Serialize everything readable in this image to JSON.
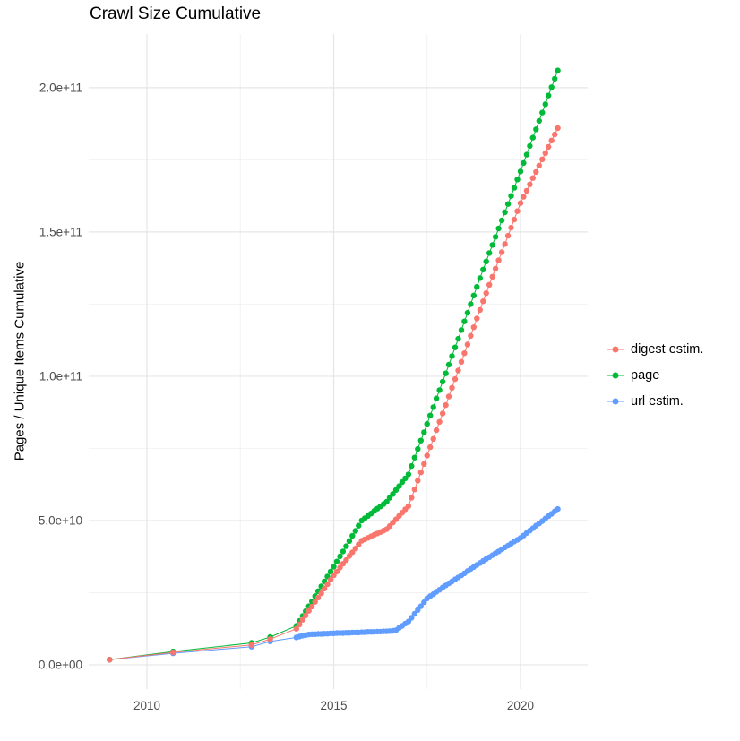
{
  "chart_data": {
    "type": "scatter",
    "title": "Crawl Size Cumulative",
    "xlabel": "",
    "ylabel": "Pages / Unique Items Cumulative",
    "values_unit": "billions (1e9)",
    "xlim": [
      2008.44,
      2021.8
    ],
    "ylim": [
      -8.4,
      218.6
    ],
    "grid": true,
    "grid_major_color": "#e6e6e6",
    "grid_minor_color": "#f2f2f2",
    "background_color": "#ffffff",
    "legend_position": "right",
    "x_ticks": [
      {
        "value": 2010,
        "label": "2010"
      },
      {
        "value": 2015,
        "label": "2015"
      },
      {
        "value": 2020,
        "label": "2020"
      }
    ],
    "y_ticks": [
      {
        "value": 0,
        "label": "0.0e+00"
      },
      {
        "value": 50,
        "label": "5.0e+10"
      },
      {
        "value": 100,
        "label": "1.0e+11"
      },
      {
        "value": 150,
        "label": "1.5e+11"
      },
      {
        "value": 200,
        "label": "2.0e+11"
      }
    ],
    "x_minor": [
      2012.5,
      2017.5
    ],
    "y_minor": [
      25,
      75,
      125,
      175
    ],
    "x": [
      2009.0,
      2010.7,
      2012.8,
      2013.3,
      2014.0,
      2014.083,
      2014.167,
      2014.25,
      2014.333,
      2014.417,
      2014.5,
      2014.583,
      2014.667,
      2014.75,
      2014.833,
      2014.917,
      2015.0,
      2015.083,
      2015.167,
      2015.25,
      2015.333,
      2015.417,
      2015.5,
      2015.583,
      2015.667,
      2015.75,
      2015.833,
      2015.917,
      2016.0,
      2016.083,
      2016.167,
      2016.25,
      2016.333,
      2016.417,
      2016.5,
      2016.583,
      2016.667,
      2016.75,
      2016.833,
      2016.917,
      2017.0,
      2017.083,
      2017.167,
      2017.25,
      2017.333,
      2017.417,
      2017.5,
      2017.583,
      2017.667,
      2017.75,
      2017.833,
      2017.917,
      2018.0,
      2018.083,
      2018.167,
      2018.25,
      2018.333,
      2018.417,
      2018.5,
      2018.583,
      2018.667,
      2018.75,
      2018.833,
      2018.917,
      2019.0,
      2019.083,
      2019.167,
      2019.25,
      2019.333,
      2019.417,
      2019.5,
      2019.583,
      2019.667,
      2019.75,
      2019.833,
      2019.917,
      2020.0,
      2020.083,
      2020.167,
      2020.25,
      2020.333,
      2020.417,
      2020.5,
      2020.583,
      2020.667,
      2020.75,
      2020.833,
      2020.917,
      2021.0
    ],
    "series": [
      {
        "name": "digest estim.",
        "color": "#F8766D",
        "values": [
          1.8,
          4.3,
          6.9,
          8.9,
          12.5,
          14.0,
          15.6,
          17.1,
          18.7,
          20.2,
          21.8,
          23.3,
          24.8,
          26.4,
          27.9,
          29.5,
          31.0,
          32.3,
          33.7,
          35.0,
          36.3,
          37.7,
          39.0,
          40.3,
          41.7,
          43.0,
          43.5,
          44.0,
          44.5,
          45.0,
          45.5,
          46.0,
          46.5,
          47.0,
          48.1,
          49.3,
          50.4,
          51.6,
          52.7,
          53.9,
          55.0,
          57.9,
          60.8,
          63.8,
          66.7,
          69.6,
          72.5,
          75.4,
          78.3,
          81.3,
          84.2,
          87.1,
          90.0,
          93.0,
          96.0,
          99.0,
          102.0,
          105.0,
          108.0,
          111.0,
          114.0,
          117.0,
          120.0,
          123.0,
          126.0,
          128.8,
          131.7,
          134.5,
          137.3,
          140.2,
          143.0,
          145.8,
          148.7,
          151.5,
          154.3,
          157.2,
          160.0,
          162.2,
          164.3,
          166.5,
          168.7,
          170.8,
          173.0,
          175.2,
          177.3,
          179.5,
          181.7,
          183.8,
          186.0
        ]
      },
      {
        "name": "page",
        "color": "#00BA38",
        "values": [
          1.8,
          4.6,
          7.6,
          9.6,
          13.5,
          15.2,
          16.9,
          18.6,
          20.3,
          22.0,
          23.8,
          25.5,
          27.2,
          28.9,
          30.6,
          32.3,
          34.0,
          35.8,
          37.6,
          39.3,
          41.1,
          42.9,
          44.7,
          46.4,
          48.2,
          50.0,
          50.8,
          51.6,
          52.4,
          53.3,
          54.1,
          54.9,
          55.7,
          56.5,
          57.9,
          59.2,
          60.6,
          61.9,
          63.3,
          64.6,
          66.0,
          68.9,
          71.8,
          74.8,
          77.7,
          80.6,
          83.5,
          86.4,
          89.3,
          92.3,
          95.2,
          98.1,
          101.0,
          104.0,
          107.0,
          110.0,
          113.0,
          116.0,
          119.0,
          122.0,
          125.0,
          128.0,
          131.0,
          134.0,
          137.0,
          139.8,
          142.7,
          145.5,
          148.3,
          151.2,
          154.0,
          156.8,
          159.7,
          162.5,
          165.3,
          168.2,
          171.0,
          173.9,
          176.8,
          179.8,
          182.7,
          185.6,
          188.5,
          191.4,
          194.3,
          197.3,
          200.2,
          203.1,
          206.0
        ]
      },
      {
        "name": "url estim.",
        "color": "#619CFF",
        "values": [
          1.8,
          4.0,
          6.3,
          8.1,
          9.5,
          9.8,
          10.1,
          10.3,
          10.5,
          10.6,
          10.6,
          10.7,
          10.7,
          10.8,
          10.8,
          10.9,
          10.9,
          11.0,
          11.0,
          11.0,
          11.1,
          11.1,
          11.2,
          11.2,
          11.2,
          11.3,
          11.3,
          11.4,
          11.4,
          11.4,
          11.5,
          11.5,
          11.6,
          11.6,
          11.7,
          11.8,
          12.0,
          12.8,
          13.5,
          14.3,
          15.0,
          16.3,
          17.7,
          19.0,
          20.3,
          21.7,
          23.0,
          23.8,
          24.5,
          25.3,
          26.0,
          26.8,
          27.5,
          28.2,
          28.9,
          29.6,
          30.3,
          31.0,
          31.7,
          32.5,
          33.2,
          33.9,
          34.6,
          35.3,
          36.0,
          36.7,
          37.3,
          38.0,
          38.7,
          39.3,
          40.0,
          40.7,
          41.3,
          42.0,
          42.7,
          43.3,
          44.0,
          44.8,
          45.7,
          46.5,
          47.3,
          48.2,
          49.0,
          49.8,
          50.7,
          51.5,
          52.3,
          53.2,
          54.0
        ]
      }
    ]
  }
}
